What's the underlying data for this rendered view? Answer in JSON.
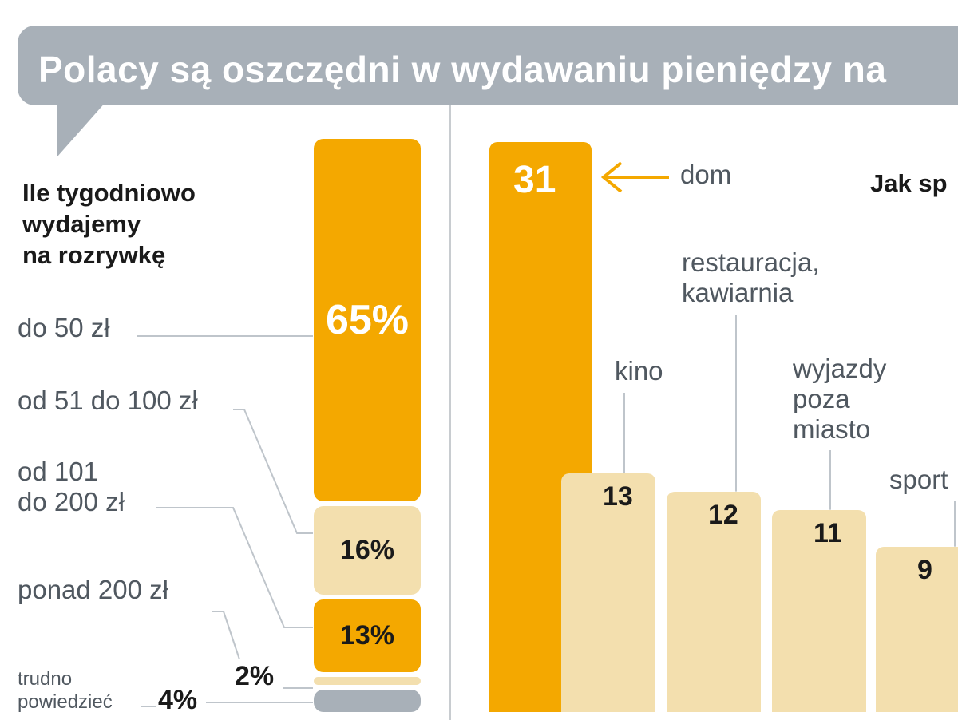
{
  "banner": {
    "title": "Polacy są oszczędni w wydawaniu pieniędzy na"
  },
  "colors": {
    "orange": "#f4a800",
    "beige": "#f3dfae",
    "gray": "#a8b0b8"
  },
  "chart_data": [
    {
      "type": "bar",
      "stacked": true,
      "title": "Ile tygodniowo\nwydajemy\nna rozrywkę",
      "unit": "%",
      "segments": [
        {
          "label": "do 50 zł",
          "value": 65,
          "value_label": "65%",
          "color": "#f4a800"
        },
        {
          "label": "od 51 do 100 zł",
          "value": 16,
          "value_label": "16%",
          "color": "#f3dfae"
        },
        {
          "label": "od 101\ndo 200 zł",
          "value": 13,
          "value_label": "13%",
          "color": "#f4a800"
        },
        {
          "label": "ponad 200 zł",
          "value": 2,
          "value_label": "2%",
          "color": "#f3dfae"
        },
        {
          "label": "trudno\npowiedzieć",
          "value": 4,
          "value_label": "4%",
          "color": "#a8b0b8"
        }
      ]
    },
    {
      "type": "bar",
      "title": "Jak sp",
      "categories": [
        "dom",
        "kino",
        "restauracja,\nkawiarnia",
        "wyjazdy\npoza\nmiasto",
        "sport"
      ],
      "values": [
        31,
        13,
        12,
        11,
        9
      ],
      "colors": [
        "#f4a800",
        "#f3dfae",
        "#f3dfae",
        "#f3dfae",
        "#f3dfae"
      ],
      "ylim": [
        0,
        31
      ]
    }
  ]
}
